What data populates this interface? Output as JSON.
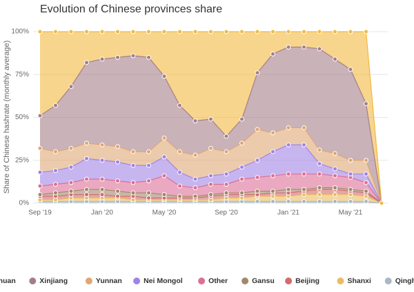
{
  "chart_data": {
    "type": "stacked-area",
    "title": "Evolution of Chinese provinces share",
    "y_label": "Share of Chinese hashrate (monthly average)",
    "categories": [
      "Sep '19",
      null,
      null,
      null,
      "Jan '20",
      null,
      null,
      null,
      "May '20",
      null,
      null,
      null,
      "Sep '20",
      null,
      null,
      null,
      "Jan '21",
      null,
      null,
      null,
      "May '21",
      null,
      null
    ],
    "ylim": [
      0,
      100
    ],
    "yticks": [
      {
        "value": 0,
        "label": "0%"
      },
      {
        "value": 25,
        "label": "25%"
      },
      {
        "value": 50,
        "label": "50%"
      },
      {
        "value": 75,
        "label": "75%"
      },
      {
        "value": 100,
        "label": "100%"
      }
    ],
    "grid": true,
    "legend": "bottom",
    "series": [
      {
        "name": "Qinghai",
        "color": "#a9b8c4",
        "values": [
          1,
          1,
          1,
          1,
          1,
          1,
          1,
          1,
          1,
          1,
          1,
          1,
          1,
          1,
          1,
          1,
          1,
          1,
          1,
          1,
          1,
          1,
          0
        ]
      },
      {
        "name": "Shanxi",
        "color": "#e9bd62",
        "values": [
          1,
          1,
          2,
          2,
          2,
          2,
          1,
          1,
          1,
          1,
          1,
          1,
          2,
          2,
          3,
          3,
          3,
          4,
          4,
          4,
          4,
          3,
          0
        ]
      },
      {
        "name": "Beijing",
        "color": "#d26b6b",
        "values": [
          2,
          2,
          2,
          2,
          2,
          1,
          2,
          1,
          1,
          1,
          1,
          2,
          2,
          2,
          1,
          2,
          2,
          2,
          3,
          3,
          2,
          2,
          0
        ]
      },
      {
        "name": "Gansu",
        "color": "#a3876a",
        "values": [
          1,
          2,
          2,
          3,
          3,
          3,
          2,
          3,
          2,
          1,
          1,
          1,
          1,
          1,
          2,
          1,
          2,
          1,
          1,
          1,
          1,
          1,
          0
        ]
      },
      {
        "name": "Other",
        "color": "#dc6f96",
        "values": [
          5,
          5,
          5,
          6,
          6,
          6,
          6,
          7,
          11,
          6,
          5,
          6,
          5,
          8,
          8,
          9,
          9,
          9,
          8,
          7,
          7,
          5,
          0
        ]
      },
      {
        "name": "Nei Mongol",
        "color": "#a183e6",
        "values": [
          8,
          8,
          9,
          12,
          11,
          11,
          10,
          9,
          11,
          8,
          5,
          5,
          6,
          7,
          10,
          14,
          17,
          17,
          6,
          4,
          2,
          5,
          0
        ]
      },
      {
        "name": "Yunnan",
        "color": "#e0a674",
        "values": [
          14,
          11,
          11,
          9,
          9,
          9,
          8,
          8,
          11,
          12,
          14,
          16,
          13,
          14,
          18,
          11,
          10,
          10,
          8,
          9,
          8,
          8,
          0
        ]
      },
      {
        "name": "Xinjiang",
        "color": "#a57e89",
        "values": [
          19,
          27,
          36,
          47,
          50,
          52,
          56,
          55,
          36,
          27,
          20,
          17,
          9,
          14,
          33,
          46,
          47,
          47,
          59,
          55,
          53,
          33,
          0
        ]
      },
      {
        "name": "Sichuan",
        "color": "#f1b93f",
        "values": [
          49,
          43,
          32,
          18,
          16,
          15,
          14,
          15,
          26,
          43,
          52,
          51,
          61,
          51,
          24,
          13,
          9,
          9,
          10,
          16,
          22,
          42,
          0
        ]
      }
    ]
  }
}
